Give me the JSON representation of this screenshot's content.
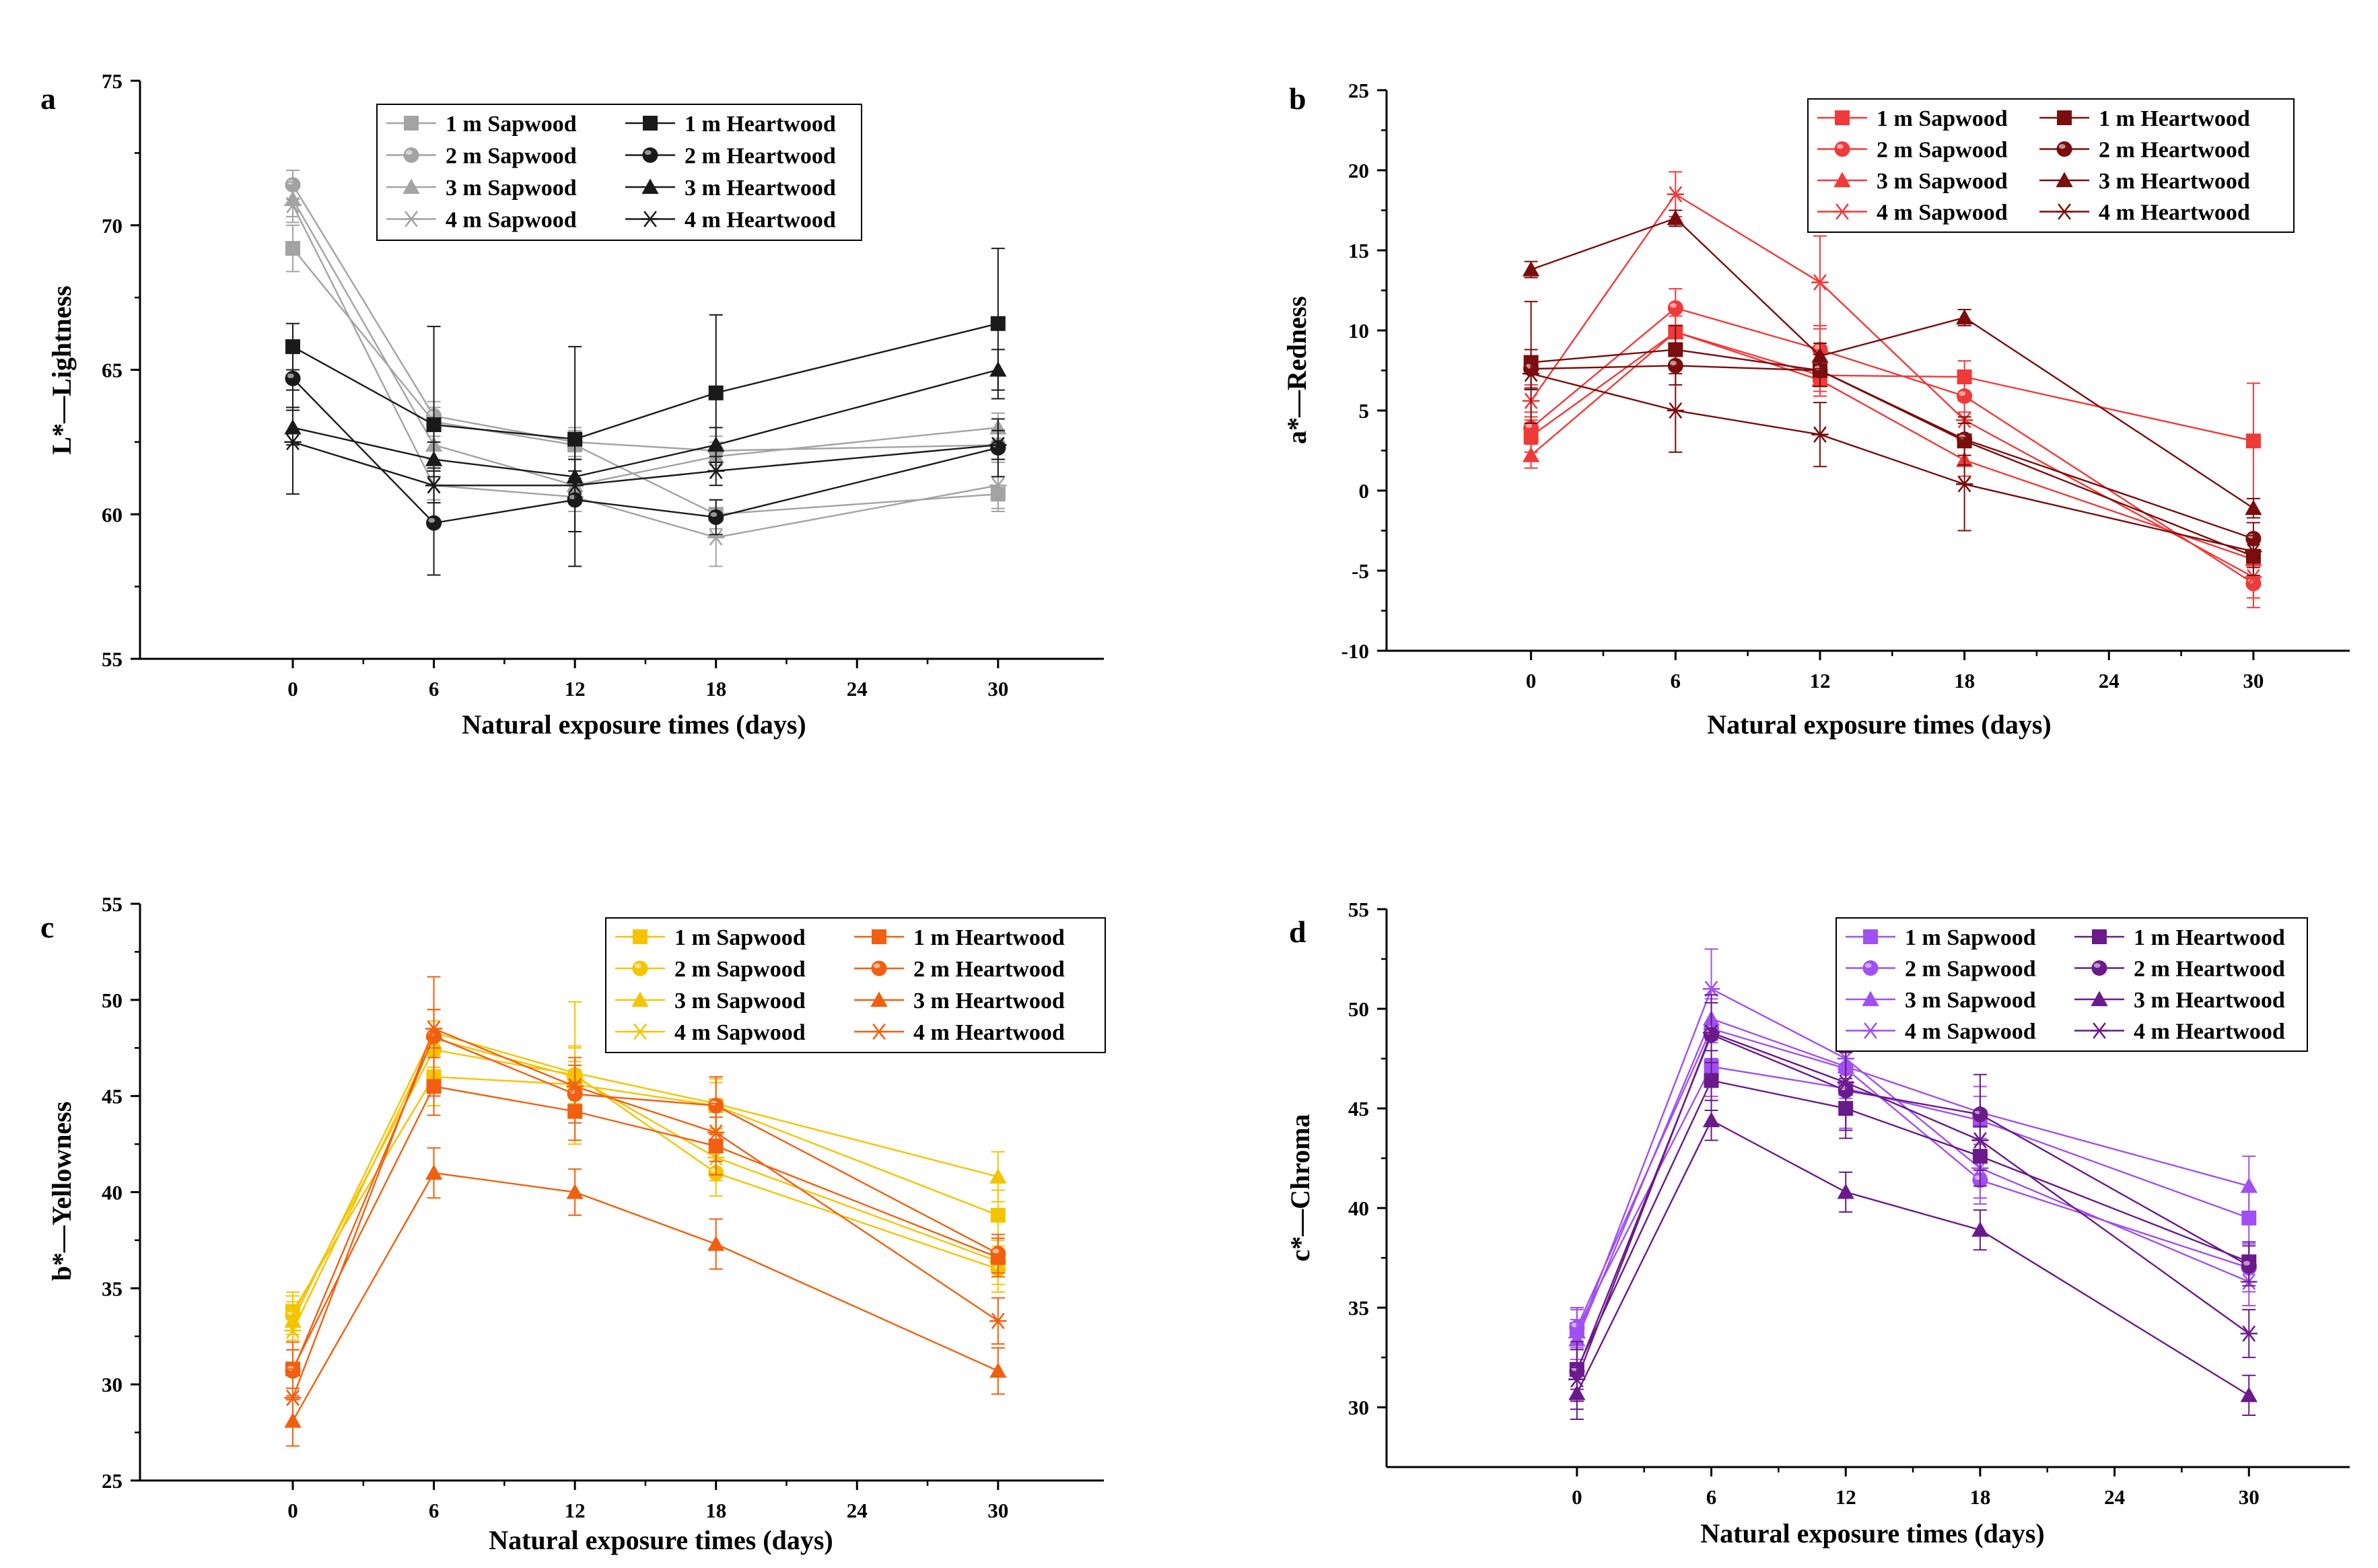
{
  "figure": {
    "x_categories": [
      0,
      6,
      12,
      18,
      24,
      30
    ],
    "xlabel": "Natural exposure times (days)",
    "legend_order": [
      "1 m Sapwood",
      "1 m Heartwood",
      "2 m Sapwood",
      "2 m Heartwood",
      "3 m Sapwood",
      "3 m Heartwood",
      "4 m Sapwood",
      "4 m Heartwood"
    ]
  },
  "chart_data": [
    {
      "panel": "a",
      "type": "line",
      "title": "",
      "xlabel": "Natural exposure times (days)",
      "ylabel": "L*—Lightness",
      "xlim": [
        -6.5,
        34.5
      ],
      "ylim": [
        55,
        75
      ],
      "yticks": [
        55,
        60,
        65,
        70,
        75
      ],
      "xticks": [
        0,
        6,
        12,
        18,
        24,
        30
      ],
      "sapwood_color": "#a3a3a3",
      "heartwood_color": "#1a1a1a",
      "legend": "top-left",
      "series": [
        {
          "name": "1 m Sapwood",
          "marker": "square",
          "wood": "sapwood",
          "x": [
            0,
            6,
            12,
            18,
            30
          ],
          "y": [
            69.2,
            63.2,
            62.4,
            60.0,
            60.7
          ],
          "err": [
            0.8,
            0.5,
            0.5,
            0.5,
            0.6
          ]
        },
        {
          "name": "2 m Sapwood",
          "marker": "circle",
          "wood": "sapwood",
          "x": [
            0,
            6,
            12,
            18,
            30
          ],
          "y": [
            71.4,
            63.4,
            62.5,
            62.2,
            62.4
          ],
          "err": [
            0.5,
            0.5,
            0.5,
            0.5,
            0.5
          ]
        },
        {
          "name": "3 m Sapwood",
          "marker": "triangle",
          "wood": "sapwood",
          "x": [
            0,
            6,
            12,
            18,
            30
          ],
          "y": [
            70.9,
            62.4,
            61.0,
            62.0,
            63.0
          ],
          "err": [
            0.6,
            0.5,
            0.5,
            0.5,
            0.5
          ]
        },
        {
          "name": "4 m Sapwood",
          "marker": "star",
          "wood": "sapwood",
          "x": [
            0,
            6,
            12,
            18,
            30
          ],
          "y": [
            70.7,
            61.0,
            60.6,
            59.2,
            61.0
          ],
          "err": [
            0.6,
            0.5,
            0.5,
            1.0,
            0.8
          ]
        },
        {
          "name": "1 m Heartwood",
          "marker": "square",
          "wood": "heartwood",
          "x": [
            0,
            6,
            12,
            18,
            30
          ],
          "y": [
            65.8,
            63.1,
            62.6,
            64.2,
            66.6
          ],
          "err": [
            0.8,
            3.4,
            3.2,
            2.7,
            2.6
          ]
        },
        {
          "name": "2 m Heartwood",
          "marker": "circle",
          "wood": "heartwood",
          "x": [
            0,
            6,
            12,
            18,
            30
          ],
          "y": [
            64.7,
            59.7,
            60.5,
            59.9,
            62.3
          ],
          "err": [
            1.0,
            1.8,
            2.3,
            0.6,
            1.0
          ]
        },
        {
          "name": "3 m Heartwood",
          "marker": "triangle",
          "wood": "heartwood",
          "x": [
            0,
            6,
            12,
            18,
            30
          ],
          "y": [
            63.0,
            61.9,
            61.3,
            62.4,
            65.0
          ],
          "err": [
            0.6,
            0.6,
            0.6,
            0.6,
            0.7
          ]
        },
        {
          "name": "4 m Heartwood",
          "marker": "star",
          "wood": "heartwood",
          "x": [
            0,
            6,
            12,
            18,
            30
          ],
          "y": [
            62.5,
            61.0,
            61.0,
            61.5,
            62.4
          ],
          "err": [
            1.8,
            0.6,
            0.5,
            0.5,
            0.5
          ]
        }
      ]
    },
    {
      "panel": "b",
      "type": "line",
      "title": "",
      "xlabel": "Natural exposure times (days)",
      "ylabel": "a*—Redness",
      "xlim": [
        -6,
        34
      ],
      "ylim": [
        -10,
        25
      ],
      "yticks": [
        -10,
        -5,
        0,
        5,
        10,
        15,
        20,
        25
      ],
      "xticks": [
        0,
        6,
        12,
        18,
        24,
        30
      ],
      "sapwood_color": "#f03a3a",
      "heartwood_color": "#7a0d0d",
      "legend": "top-right",
      "series": [
        {
          "name": "1 m Sapwood",
          "marker": "square",
          "wood": "sapwood",
          "x": [
            0,
            6,
            12,
            18,
            30
          ],
          "y": [
            3.4,
            9.9,
            7.2,
            7.1,
            3.1
          ],
          "err": [
            1.0,
            1.5,
            1.0,
            1.0,
            3.6
          ]
        },
        {
          "name": "2 m Sapwood",
          "marker": "circle",
          "wood": "sapwood",
          "x": [
            0,
            6,
            12,
            18,
            30
          ],
          "y": [
            3.9,
            11.4,
            8.8,
            5.9,
            -5.8
          ],
          "err": [
            1.0,
            1.2,
            1.5,
            1.0,
            1.5
          ]
        },
        {
          "name": "3 m Sapwood",
          "marker": "triangle",
          "wood": "sapwood",
          "x": [
            0,
            6,
            12,
            18,
            30
          ],
          "y": [
            2.2,
            9.9,
            6.9,
            1.9,
            -4.3
          ],
          "err": [
            0.8,
            1.0,
            1.0,
            1.0,
            1.2
          ]
        },
        {
          "name": "4 m Sapwood",
          "marker": "star",
          "wood": "sapwood",
          "x": [
            0,
            6,
            12,
            18,
            30
          ],
          "y": [
            5.6,
            18.5,
            13.0,
            4.4,
            -5.4
          ],
          "err": [
            1.0,
            1.4,
            2.9,
            1.2,
            1.3
          ]
        },
        {
          "name": "1 m Heartwood",
          "marker": "square",
          "wood": "heartwood",
          "x": [
            0,
            6,
            12,
            18,
            30
          ],
          "y": [
            8.0,
            8.8,
            7.5,
            3.1,
            -4.1
          ],
          "err": [
            3.8,
            1.5,
            1.0,
            1.5,
            1.2
          ]
        },
        {
          "name": "2 m Heartwood",
          "marker": "circle",
          "wood": "heartwood",
          "x": [
            0,
            6,
            12,
            18,
            30
          ],
          "y": [
            7.6,
            7.8,
            7.5,
            3.2,
            -3.0
          ],
          "err": [
            1.2,
            1.2,
            1.0,
            1.0,
            1.0
          ]
        },
        {
          "name": "3 m Heartwood",
          "marker": "triangle",
          "wood": "heartwood",
          "x": [
            0,
            6,
            12,
            18,
            30
          ],
          "y": [
            13.8,
            17.0,
            8.4,
            10.8,
            -1.1
          ],
          "err": [
            0.5,
            0.5,
            0.8,
            0.5,
            0.6
          ]
        },
        {
          "name": "4 m Heartwood",
          "marker": "star",
          "wood": "heartwood",
          "x": [
            0,
            6,
            12,
            18,
            30
          ],
          "y": [
            7.3,
            5.0,
            3.5,
            0.4,
            -3.8
          ],
          "err": [
            1.0,
            2.6,
            2.0,
            2.9,
            1.0
          ]
        }
      ]
    },
    {
      "panel": "c",
      "type": "line",
      "title": "",
      "xlabel": "Natural exposure times (days)",
      "ylabel": "b*—Yellowness",
      "xlim": [
        -6.5,
        34.5
      ],
      "ylim": [
        25,
        55
      ],
      "yticks": [
        25,
        30,
        35,
        40,
        45,
        50,
        55
      ],
      "xticks": [
        0,
        6,
        12,
        18,
        24,
        30
      ],
      "sapwood_color": "#f5c400",
      "heartwood_color": "#f06010",
      "legend": "top-right",
      "series": [
        {
          "name": "1 m Sapwood",
          "marker": "square",
          "wood": "sapwood",
          "x": [
            0,
            6,
            12,
            18,
            30
          ],
          "y": [
            33.8,
            46.0,
            45.6,
            44.5,
            38.8
          ],
          "err": [
            1.0,
            1.5,
            1.2,
            1.2,
            1.3
          ]
        },
        {
          "name": "2 m Sapwood",
          "marker": "circle",
          "wood": "sapwood",
          "x": [
            0,
            6,
            12,
            18,
            30
          ],
          "y": [
            33.6,
            47.4,
            46.1,
            41.0,
            36.0
          ],
          "err": [
            1.0,
            1.5,
            1.5,
            1.2,
            1.2
          ]
        },
        {
          "name": "3 m Sapwood",
          "marker": "triangle",
          "wood": "sapwood",
          "x": [
            0,
            6,
            12,
            18,
            30
          ],
          "y": [
            33.3,
            48.3,
            46.2,
            44.6,
            40.8
          ],
          "err": [
            1.0,
            1.2,
            3.7,
            1.3,
            1.3
          ]
        },
        {
          "name": "4 m Sapwood",
          "marker": "star",
          "wood": "sapwood",
          "x": [
            0,
            6,
            12,
            18,
            30
          ],
          "y": [
            32.8,
            48.0,
            46.0,
            41.8,
            36.4
          ],
          "err": [
            1.0,
            1.5,
            1.5,
            1.2,
            1.2
          ]
        },
        {
          "name": "1 m Heartwood",
          "marker": "square",
          "wood": "heartwood",
          "x": [
            0,
            6,
            12,
            18,
            30
          ],
          "y": [
            30.8,
            45.5,
            44.2,
            42.4,
            36.6
          ],
          "err": [
            1.0,
            1.5,
            1.5,
            1.5,
            1.0
          ]
        },
        {
          "name": "2 m Heartwood",
          "marker": "circle",
          "wood": "heartwood",
          "x": [
            0,
            6,
            12,
            18,
            30
          ],
          "y": [
            30.7,
            48.1,
            45.1,
            44.5,
            36.8
          ],
          "err": [
            1.5,
            3.1,
            1.5,
            1.5,
            1.0
          ]
        },
        {
          "name": "3 m Heartwood",
          "marker": "triangle",
          "wood": "heartwood",
          "x": [
            0,
            6,
            12,
            18,
            30
          ],
          "y": [
            28.1,
            41.0,
            40.0,
            37.3,
            30.7
          ],
          "err": [
            1.3,
            1.3,
            1.2,
            1.3,
            1.2
          ]
        },
        {
          "name": "4 m Heartwood",
          "marker": "star",
          "wood": "heartwood",
          "x": [
            0,
            6,
            12,
            18,
            30
          ],
          "y": [
            29.3,
            48.5,
            45.5,
            43.1,
            33.3
          ],
          "err": [
            1.5,
            1.0,
            1.5,
            1.5,
            1.2
          ]
        }
      ]
    },
    {
      "panel": "d",
      "type": "line",
      "title": "",
      "xlabel": "Natural exposure times (days)",
      "ylabel": "c*—Chroma",
      "xlim": [
        -8.5,
        34.5
      ],
      "ylim": [
        27,
        55
      ],
      "yticks": [
        30,
        35,
        40,
        45,
        50,
        55
      ],
      "xticks": [
        0,
        6,
        12,
        18,
        24,
        30
      ],
      "sapwood_color": "#a050f0",
      "heartwood_color": "#6a1a8a",
      "legend": "top-right",
      "series": [
        {
          "name": "1 m Sapwood",
          "marker": "square",
          "wood": "sapwood",
          "x": [
            0,
            6,
            12,
            18,
            30
          ],
          "y": [
            33.9,
            47.1,
            46.0,
            44.4,
            39.5
          ],
          "err": [
            1.0,
            1.5,
            1.2,
            1.2,
            1.3
          ]
        },
        {
          "name": "2 m Sapwood",
          "marker": "circle",
          "wood": "sapwood",
          "x": [
            0,
            6,
            12,
            18,
            30
          ],
          "y": [
            34.0,
            49.0,
            47.0,
            41.4,
            37.0
          ],
          "err": [
            1.0,
            1.5,
            1.5,
            1.2,
            1.2
          ]
        },
        {
          "name": "3 m Sapwood",
          "marker": "triangle",
          "wood": "sapwood",
          "x": [
            0,
            6,
            12,
            18,
            30
          ],
          "y": [
            33.4,
            49.5,
            47.1,
            44.8,
            41.1
          ],
          "err": [
            1.0,
            1.2,
            3.1,
            1.3,
            1.5
          ]
        },
        {
          "name": "4 m Sapwood",
          "marker": "star",
          "wood": "sapwood",
          "x": [
            0,
            6,
            12,
            18,
            30
          ],
          "y": [
            33.5,
            51.0,
            47.5,
            42.0,
            36.3
          ],
          "err": [
            1.5,
            2.0,
            2.5,
            1.5,
            1.2
          ]
        },
        {
          "name": "1 m Heartwood",
          "marker": "square",
          "wood": "heartwood",
          "x": [
            0,
            6,
            12,
            18,
            30
          ],
          "y": [
            31.9,
            46.4,
            45.0,
            42.6,
            37.3
          ],
          "err": [
            1.0,
            1.5,
            1.5,
            1.5,
            1.0
          ]
        },
        {
          "name": "2 m Heartwood",
          "marker": "circle",
          "wood": "heartwood",
          "x": [
            0,
            6,
            12,
            18,
            30
          ],
          "y": [
            31.8,
            48.7,
            45.9,
            44.7,
            37.1
          ],
          "err": [
            1.5,
            2.0,
            2.0,
            2.0,
            1.0
          ]
        },
        {
          "name": "3 m Heartwood",
          "marker": "triangle",
          "wood": "heartwood",
          "x": [
            0,
            6,
            12,
            18,
            30
          ],
          "y": [
            30.7,
            44.4,
            40.8,
            38.9,
            30.6
          ],
          "err": [
            1.3,
            1.0,
            1.0,
            1.0,
            1.0
          ]
        },
        {
          "name": "4 m Heartwood",
          "marker": "star",
          "wood": "heartwood",
          "x": [
            0,
            6,
            12,
            18,
            30
          ],
          "y": [
            31.4,
            48.8,
            46.3,
            43.4,
            33.7
          ],
          "err": [
            1.5,
            1.5,
            1.5,
            1.5,
            1.2
          ]
        }
      ]
    }
  ]
}
